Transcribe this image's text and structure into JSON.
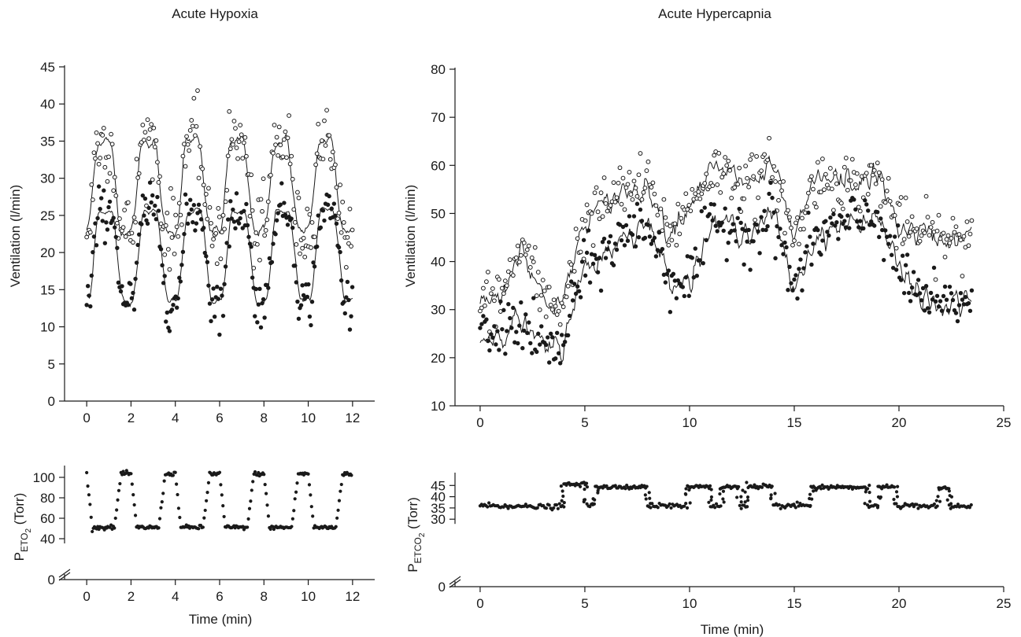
{
  "panels": {
    "hypoxia": {
      "title": "Acute Hypoxia",
      "vent_ylabel": "Ventilation (l/min)",
      "bottom_ylabel_main": "P",
      "bottom_ylabel_sub": "ETO",
      "bottom_ylabel_subsub": "2",
      "bottom_ylabel_unit": " (Torr)",
      "xlabel": "Time (min)"
    },
    "hypercapnia": {
      "title": "Acute Hypercapnia",
      "vent_ylabel": "Ventilation (l/min)",
      "bottom_ylabel_main": "P",
      "bottom_ylabel_sub": "ETCO",
      "bottom_ylabel_subsub": "2",
      "bottom_ylabel_unit": " (Torr)",
      "xlabel": "Time (min)"
    }
  },
  "colors": {
    "ink": "#1a1a1a",
    "open_fill": "#ffffff"
  },
  "chart_data": [
    {
      "id": "hypoxia_ventilation",
      "type": "scatter",
      "title": "Acute Hypoxia",
      "xlabel": "",
      "ylabel": "Ventilation (l/min)",
      "xlim": [
        -1,
        13
      ],
      "ylim": [
        0,
        45
      ],
      "xticks": [
        0,
        2,
        4,
        6,
        8,
        10,
        12
      ],
      "yticks": [
        0,
        5,
        10,
        15,
        20,
        25,
        30,
        35,
        40,
        45
      ],
      "grid": false,
      "cycles": {
        "period_min": 2.0,
        "offset_min": 0.0,
        "count": 6
      },
      "series": [
        {
          "marker": "open-circle",
          "with_line": true,
          "low": 23,
          "high": 35,
          "rise_start": 0.1,
          "rise_end": 0.45,
          "fall_start": 1.1,
          "fall_end": 1.5,
          "noise": 2.5
        },
        {
          "marker": "filled-circle",
          "with_line": true,
          "low": 13.5,
          "high": 25.5,
          "rise_start": 0.15,
          "rise_end": 0.5,
          "fall_start": 1.2,
          "fall_end": 1.6,
          "noise": 1.6
        }
      ]
    },
    {
      "id": "hypoxia_peto2",
      "type": "scatter",
      "xlabel": "Time (min)",
      "ylabel": "PETO2 (Torr)",
      "xlim": [
        -1,
        13
      ],
      "ylim": [
        0,
        110
      ],
      "axis_break": true,
      "xticks": [
        0,
        2,
        4,
        6,
        8,
        10,
        12
      ],
      "yticks": [
        0,
        40,
        60,
        80,
        100
      ],
      "grid": false,
      "series": [
        {
          "marker": "filled-dot",
          "low": 51,
          "high": 103.5,
          "rise_start": 1.25,
          "rise_end": 1.55,
          "fall_start": 0.0,
          "fall_end": 0.2,
          "noise": 1.0,
          "period_min": 2.0
        }
      ]
    },
    {
      "id": "hypercapnia_ventilation",
      "type": "scatter",
      "title": "Acute Hypercapnia",
      "xlabel": "",
      "ylabel": "Ventilation (l/min)",
      "xlim": [
        -1.2,
        25
      ],
      "ylim": [
        10,
        80
      ],
      "xticks": [
        0,
        5,
        10,
        15,
        20,
        25
      ],
      "yticks": [
        10,
        20,
        30,
        40,
        50,
        60,
        70,
        80
      ],
      "grid": false,
      "series": [
        {
          "marker": "open-circle",
          "with_line": true,
          "x": [
            0,
            1,
            1.5,
            2,
            3,
            4,
            4.3,
            5,
            6,
            7,
            8,
            9,
            10,
            11,
            12,
            13,
            14,
            15,
            16,
            17,
            18,
            19,
            20,
            21,
            22,
            23,
            23.5
          ],
          "y": [
            31,
            33,
            38,
            44,
            32,
            31,
            38,
            48,
            52,
            55,
            56,
            46,
            52,
            59,
            58,
            56,
            60,
            44,
            57,
            57,
            56,
            58,
            47,
            46,
            45,
            44,
            47
          ]
        },
        {
          "marker": "filled-circle",
          "with_line": true,
          "x": [
            0,
            1,
            1.5,
            2,
            3,
            4,
            4.3,
            5,
            6,
            7,
            8,
            9,
            10,
            11,
            12,
            13,
            14,
            15,
            16,
            17,
            18,
            19,
            20,
            21,
            22,
            23,
            23.5
          ],
          "y": [
            24,
            25,
            28,
            27,
            22,
            22,
            30,
            38,
            42,
            46,
            48,
            37,
            36,
            47,
            48,
            46,
            50,
            34,
            45,
            47,
            48,
            50,
            38,
            33,
            30,
            32,
            33
          ]
        }
      ]
    },
    {
      "id": "hypercapnia_petco2",
      "type": "scatter",
      "xlabel": "Time (min)",
      "ylabel": "PETCO2 (Torr)",
      "xlim": [
        -1.2,
        25
      ],
      "ylim": [
        0,
        50
      ],
      "axis_break": true,
      "xticks": [
        0,
        5,
        10,
        15,
        20,
        25
      ],
      "yticks": [
        0,
        30,
        35,
        40,
        45
      ],
      "grid": false,
      "series": [
        {
          "marker": "filled-dot",
          "segments": [
            [
              0,
              1.2,
              36
            ],
            [
              1.2,
              1.9,
              36
            ],
            [
              1.9,
              4.0,
              35.5
            ],
            [
              4.0,
              5.1,
              45.5
            ],
            [
              5.1,
              5.5,
              36
            ],
            [
              5.5,
              8.0,
              44.2
            ],
            [
              8.0,
              9.9,
              36
            ],
            [
              9.9,
              11.0,
              44.5
            ],
            [
              11.0,
              11.5,
              36
            ],
            [
              11.5,
              12.4,
              44.5
            ],
            [
              12.4,
              12.8,
              36
            ],
            [
              12.8,
              14.0,
              44.5
            ],
            [
              14.0,
              15.0,
              36
            ],
            [
              15.0,
              15.8,
              36
            ],
            [
              15.8,
              18.5,
              44.2
            ],
            [
              18.5,
              19.0,
              36
            ],
            [
              19.0,
              19.8,
              44.5
            ],
            [
              19.8,
              21.9,
              35.8
            ],
            [
              21.9,
              22.4,
              44
            ],
            [
              22.4,
              23.5,
              35.5
            ]
          ]
        }
      ]
    }
  ]
}
